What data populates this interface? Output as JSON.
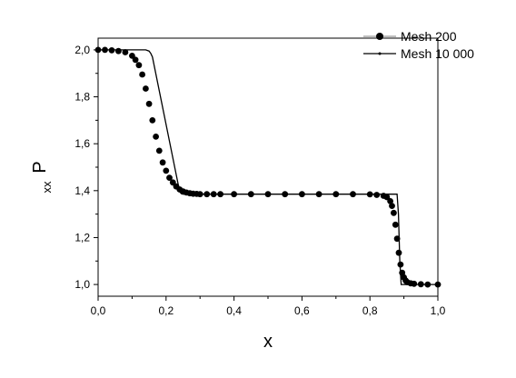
{
  "chart_data": {
    "type": "line",
    "xlabel": "x",
    "ylabel_main": "P",
    "ylabel_sub": "xx",
    "xlim": [
      0.0,
      1.0
    ],
    "ylim": [
      0.95,
      2.05
    ],
    "xticks": [
      0.0,
      0.2,
      0.4,
      0.6,
      0.8,
      1.0
    ],
    "xtick_labels": [
      "0,0",
      "0,2",
      "0,4",
      "0,6",
      "0,8",
      "1,0"
    ],
    "yticks": [
      1.0,
      1.2,
      1.4,
      1.6,
      1.8,
      2.0
    ],
    "ytick_labels": [
      "1,0",
      "1,2",
      "1,4",
      "1,6",
      "1,8",
      "2,0"
    ],
    "grid": false,
    "legend_position": "top-right",
    "series": [
      {
        "name": "Mesh 200",
        "style": "markers",
        "color": "#000000",
        "x": [
          0.0,
          0.02,
          0.04,
          0.06,
          0.08,
          0.1,
          0.11,
          0.12,
          0.13,
          0.14,
          0.15,
          0.16,
          0.17,
          0.18,
          0.19,
          0.2,
          0.21,
          0.22,
          0.23,
          0.24,
          0.25,
          0.26,
          0.27,
          0.28,
          0.29,
          0.3,
          0.32,
          0.34,
          0.36,
          0.4,
          0.45,
          0.5,
          0.55,
          0.6,
          0.65,
          0.7,
          0.75,
          0.8,
          0.82,
          0.84,
          0.85,
          0.86,
          0.865,
          0.87,
          0.875,
          0.88,
          0.885,
          0.89,
          0.895,
          0.9,
          0.905,
          0.91,
          0.92,
          0.93,
          0.95,
          0.97,
          1.0
        ],
        "y": [
          2.0,
          2.0,
          1.998,
          1.995,
          1.99,
          1.975,
          1.958,
          1.935,
          1.895,
          1.835,
          1.77,
          1.7,
          1.63,
          1.57,
          1.52,
          1.485,
          1.455,
          1.435,
          1.418,
          1.405,
          1.397,
          1.392,
          1.389,
          1.387,
          1.386,
          1.385,
          1.385,
          1.385,
          1.385,
          1.385,
          1.385,
          1.385,
          1.385,
          1.385,
          1.385,
          1.385,
          1.385,
          1.384,
          1.382,
          1.378,
          1.372,
          1.355,
          1.335,
          1.305,
          1.255,
          1.195,
          1.135,
          1.085,
          1.05,
          1.03,
          1.017,
          1.01,
          1.005,
          1.003,
          1.001,
          1.0,
          1.0
        ]
      },
      {
        "name": "Mesh 10 000",
        "style": "line",
        "color": "#000000",
        "x": [
          0.0,
          0.14,
          0.15,
          0.155,
          0.16,
          0.24,
          0.245,
          0.25,
          0.88,
          0.884,
          0.888,
          0.892,
          1.0
        ],
        "y": [
          2.0,
          2.0,
          1.995,
          1.985,
          1.97,
          1.395,
          1.387,
          1.385,
          1.385,
          1.3,
          1.1,
          1.0,
          1.0
        ]
      }
    ]
  }
}
